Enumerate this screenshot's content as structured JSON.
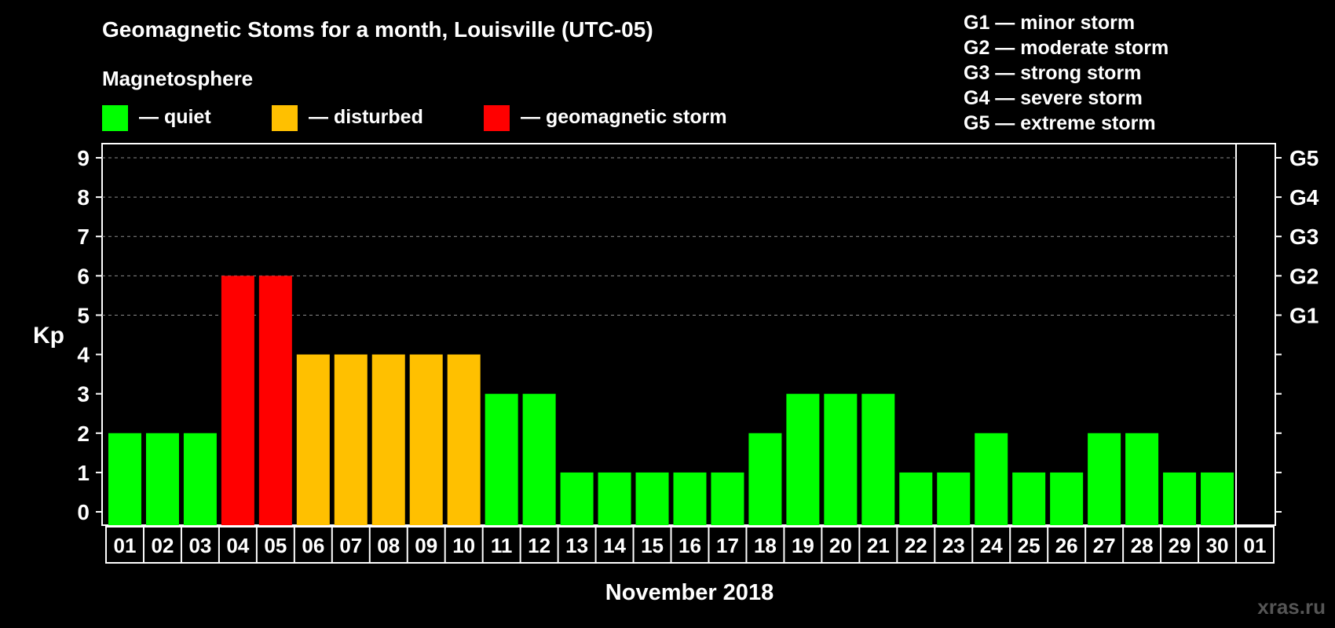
{
  "title": "Geomagnetic Stoms for a month, Louisville (UTC-05)",
  "legend": {
    "heading": "Magnetosphere",
    "items": [
      {
        "label": "— quiet",
        "color": "#00ff00"
      },
      {
        "label": "— disturbed",
        "color": "#ffc000"
      },
      {
        "label": "— geomagnetic storm",
        "color": "#ff0000"
      }
    ]
  },
  "storm_scale": [
    "G1 — minor storm",
    "G2 — moderate storm",
    "G3 — strong storm",
    "G4 — severe storm",
    "G5 — extreme storm"
  ],
  "watermark": "xras.ru",
  "chart_data": {
    "type": "bar",
    "title": "Geomagnetic Stoms for a month, Louisville (UTC-05)",
    "xlabel": "November 2018",
    "ylabel": "Kp",
    "ylim": [
      0,
      9
    ],
    "yticks": [
      "0",
      "1",
      "2",
      "3",
      "4",
      "5",
      "6",
      "7",
      "8",
      "9"
    ],
    "right_labels": [
      {
        "kp": 5,
        "label": "G1"
      },
      {
        "kp": 6,
        "label": "G2"
      },
      {
        "kp": 7,
        "label": "G3"
      },
      {
        "kp": 8,
        "label": "G4"
      },
      {
        "kp": 9,
        "label": "G5"
      }
    ],
    "categories": [
      "01",
      "02",
      "03",
      "04",
      "05",
      "06",
      "07",
      "08",
      "09",
      "10",
      "11",
      "12",
      "13",
      "14",
      "15",
      "16",
      "17",
      "18",
      "19",
      "20",
      "21",
      "22",
      "23",
      "24",
      "25",
      "26",
      "27",
      "28",
      "29",
      "30",
      "01"
    ],
    "values": [
      2,
      2,
      2,
      6,
      6,
      4,
      4,
      4,
      4,
      4,
      3,
      3,
      1,
      1,
      1,
      1,
      1,
      2,
      3,
      3,
      3,
      1,
      1,
      2,
      1,
      1,
      2,
      2,
      1,
      1,
      null
    ],
    "colors": {
      "quiet": "#00ff00",
      "disturbed": "#ffc000",
      "storm": "#ff0000"
    },
    "grid": "dashed at Kp 5-9"
  }
}
